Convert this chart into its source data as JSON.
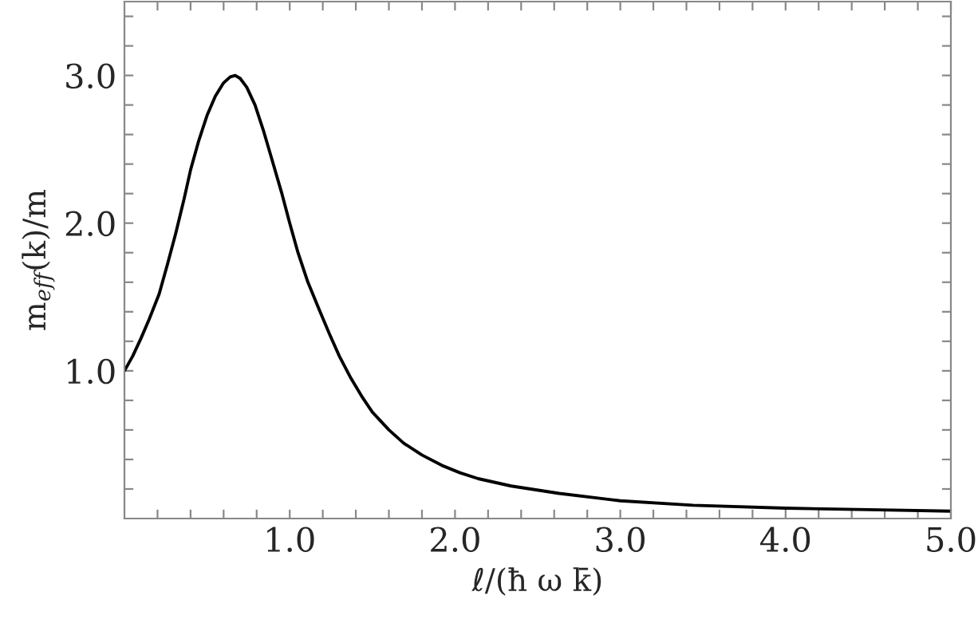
{
  "chart_data": {
    "type": "line",
    "xlabel": "ℓ/(ħ ω k̄)",
    "ylabel": "m$_{eff}$(k)/m",
    "x": [
      0,
      0.05,
      0.1,
      0.15,
      0.21,
      0.26,
      0.31,
      0.36,
      0.4,
      0.45,
      0.5,
      0.55,
      0.6,
      0.64,
      0.67,
      0.7,
      0.74,
      0.79,
      0.84,
      0.89,
      0.95,
      1.0,
      1.05,
      1.11,
      1.18,
      1.24,
      1.3,
      1.37,
      1.44,
      1.5,
      1.6,
      1.69,
      1.8,
      1.92,
      2.03,
      2.14,
      2.34,
      2.63,
      3.0,
      3.44,
      4.0,
      4.5,
      5.0
    ],
    "series": [
      {
        "color": "#000000",
        "values": [
          1.0,
          1.1,
          1.22,
          1.35,
          1.52,
          1.72,
          1.93,
          2.16,
          2.36,
          2.56,
          2.73,
          2.86,
          2.95,
          2.99,
          3.0,
          2.98,
          2.92,
          2.8,
          2.63,
          2.44,
          2.21,
          2.0,
          1.8,
          1.6,
          1.41,
          1.25,
          1.1,
          0.95,
          0.82,
          0.72,
          0.6,
          0.51,
          0.43,
          0.36,
          0.31,
          0.27,
          0.22,
          0.17,
          0.12,
          0.09,
          0.07,
          0.06,
          0.05
        ]
      }
    ],
    "xlim": [
      0,
      5
    ],
    "ylim": [
      0,
      3.5
    ],
    "xticks": [
      {
        "value": 0.2,
        "label": null
      },
      {
        "value": 0.4,
        "label": null
      },
      {
        "value": 0.6,
        "label": null
      },
      {
        "value": 0.8,
        "label": null
      },
      {
        "value": 1.0,
        "label": "1.0"
      },
      {
        "value": 1.2,
        "label": null
      },
      {
        "value": 1.4,
        "label": null
      },
      {
        "value": 1.6,
        "label": null
      },
      {
        "value": 1.8,
        "label": null
      },
      {
        "value": 2.0,
        "label": "2.0"
      },
      {
        "value": 2.2,
        "label": null
      },
      {
        "value": 2.4,
        "label": null
      },
      {
        "value": 2.6,
        "label": null
      },
      {
        "value": 2.8,
        "label": null
      },
      {
        "value": 3.0,
        "label": "3.0"
      },
      {
        "value": 3.2,
        "label": null
      },
      {
        "value": 3.4,
        "label": null
      },
      {
        "value": 3.6,
        "label": null
      },
      {
        "value": 3.8,
        "label": null
      },
      {
        "value": 4.0,
        "label": "4.0"
      },
      {
        "value": 4.2,
        "label": null
      },
      {
        "value": 4.4,
        "label": null
      },
      {
        "value": 4.6,
        "label": null
      },
      {
        "value": 4.8,
        "label": null
      },
      {
        "value": 5.0,
        "label": "5.0"
      }
    ],
    "yticks": [
      {
        "value": 0.2,
        "label": null
      },
      {
        "value": 0.4,
        "label": null
      },
      {
        "value": 0.6,
        "label": null
      },
      {
        "value": 0.8,
        "label": null
      },
      {
        "value": 1.0,
        "label": "1.0"
      },
      {
        "value": 1.2,
        "label": null
      },
      {
        "value": 1.4,
        "label": null
      },
      {
        "value": 1.6,
        "label": null
      },
      {
        "value": 1.8,
        "label": null
      },
      {
        "value": 2.0,
        "label": "2.0"
      },
      {
        "value": 2.2,
        "label": null
      },
      {
        "value": 2.4,
        "label": null
      },
      {
        "value": 2.6,
        "label": null
      },
      {
        "value": 2.8,
        "label": null
      },
      {
        "value": 3.0,
        "label": "3.0"
      },
      {
        "value": 3.2,
        "label": null
      },
      {
        "value": 3.4,
        "label": null
      }
    ],
    "grid": false,
    "legend": false,
    "marker": "none",
    "line_style": "solid"
  }
}
